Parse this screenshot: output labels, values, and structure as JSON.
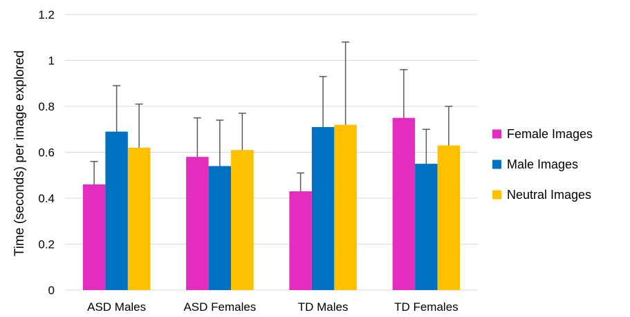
{
  "chart_data": {
    "type": "bar",
    "title": "",
    "xlabel": "",
    "ylabel": "Time (seconds) per image explored",
    "ylim": [
      0,
      1.2
    ],
    "yticks": [
      "0",
      "0.2",
      "0.4",
      "0.6",
      "0.8",
      "1",
      "1.2"
    ],
    "grid": true,
    "legend_position": "right",
    "categories": [
      "ASD Males",
      "ASD Females",
      "TD Males",
      "TD Females"
    ],
    "series": [
      {
        "name": "Female Images",
        "color": "#E22DBE",
        "values": [
          0.46,
          0.58,
          0.43,
          0.75
        ],
        "error_upper": [
          0.56,
          0.75,
          0.51,
          0.96
        ]
      },
      {
        "name": "Male Images",
        "color": "#0070C0",
        "values": [
          0.69,
          0.54,
          0.71,
          0.55
        ],
        "error_upper": [
          0.89,
          0.74,
          0.93,
          0.7
        ]
      },
      {
        "name": "Neutral Images",
        "color": "#FFC000",
        "values": [
          0.62,
          0.61,
          0.72,
          0.63
        ],
        "error_upper": [
          0.81,
          0.77,
          1.08,
          0.8
        ]
      }
    ]
  }
}
